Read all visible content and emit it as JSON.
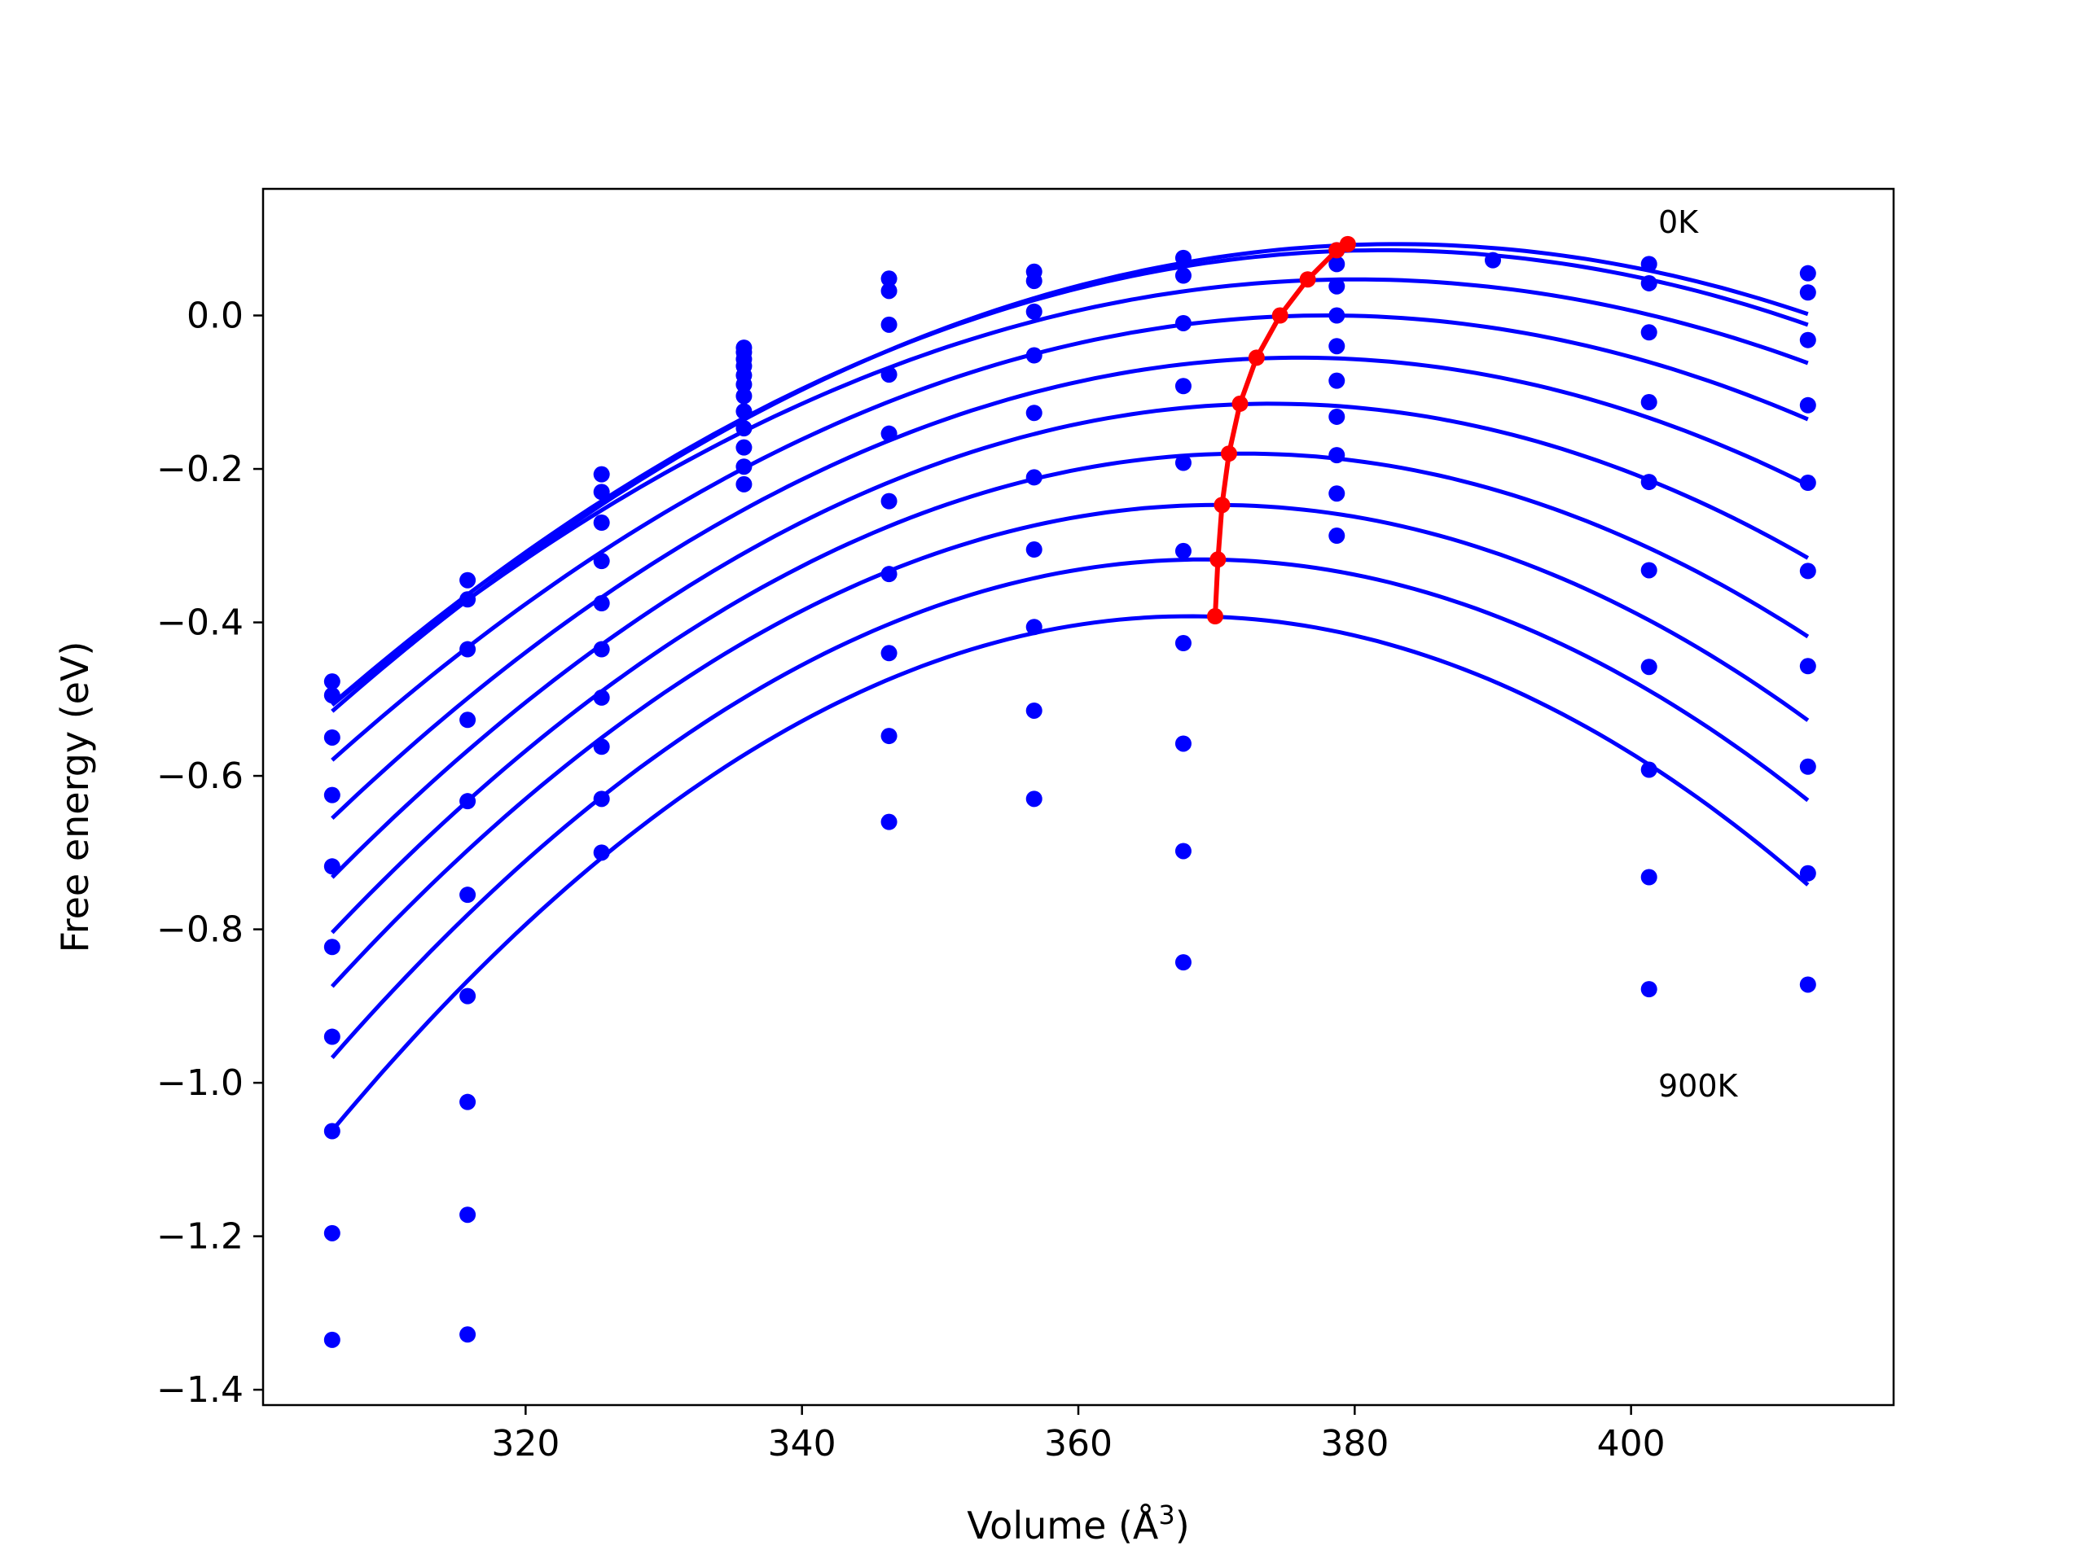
{
  "chart_data": {
    "type": "scatter",
    "xlabel": "Volume (Å³)",
    "ylabel": "Free energy (eV)",
    "xlim": [
      301,
      419
    ],
    "ylim": [
      -1.42,
      0.165
    ],
    "x_ticks": [
      320,
      340,
      360,
      380,
      400
    ],
    "y_ticks": [
      0.0,
      -0.2,
      -0.4,
      -0.6,
      -0.8,
      -1.0,
      -1.2,
      -1.4
    ],
    "x_tick_labels": [
      "320",
      "340",
      "360",
      "380",
      "400"
    ],
    "y_tick_labels": [
      "0.0",
      "−0.2",
      "−0.4",
      "−0.6",
      "−0.8",
      "−1.0",
      "−1.2",
      "−1.4"
    ],
    "grid": false,
    "annotations": [
      {
        "text": "0K",
        "x": 401,
        "y": 0.11
      },
      {
        "text": "900K",
        "x": 401,
        "y": -1.01
      }
    ],
    "colors": {
      "points": "#0000ff",
      "fits": "#0000ff",
      "minimum_path": "#ff0000"
    },
    "points": {
      "x": [
        306,
        315.8,
        325.5,
        335.8,
        346.3,
        356.8,
        367.6,
        378.7,
        390,
        401.3,
        412.8
      ],
      "y_by_x": [
        [
          -0.477,
          -0.495,
          -0.55,
          -0.625,
          -0.718,
          -0.823,
          -0.94,
          -1.063,
          -1.196,
          -1.335
        ],
        [
          -0.345,
          -0.37,
          -0.435,
          -0.527,
          -0.633,
          -0.755,
          -0.887,
          -1.025,
          -1.172,
          -1.328
        ],
        [
          -0.207,
          -0.23,
          -0.27,
          -0.32,
          -0.375,
          -0.435,
          -0.498,
          -0.562,
          -0.63,
          -0.7
        ],
        [
          -0.042,
          -0.048,
          -0.057,
          -0.066,
          -0.078,
          -0.09,
          -0.105,
          -0.125,
          -0.147,
          -0.172,
          -0.197,
          -0.22
        ],
        [
          0.048,
          0.032,
          -0.012,
          -0.077,
          -0.154,
          -0.242,
          -0.337,
          -0.44,
          -0.548,
          -0.66
        ],
        [
          0.057,
          0.045,
          0.005,
          -0.052,
          -0.127,
          -0.211,
          -0.305,
          -0.406,
          -0.515,
          -0.63
        ],
        [
          0.075,
          0.052,
          -0.01,
          -0.092,
          -0.192,
          -0.307,
          -0.427,
          -0.558,
          -0.698,
          -0.843
        ],
        [
          0.085,
          0.067,
          0.038,
          0.0,
          -0.04,
          -0.085,
          -0.132,
          -0.182,
          -0.232,
          -0.287
        ],
        [
          0.072
        ],
        [
          0.067,
          0.042,
          -0.022,
          -0.113,
          -0.217,
          -0.332,
          -0.458,
          -0.592,
          -0.732,
          -0.878
        ],
        [
          0.055,
          0.03,
          -0.032,
          -0.117,
          -0.218,
          -0.333,
          -0.457,
          -0.588,
          -0.727,
          -0.872
        ]
      ]
    },
    "fits": {
      "x_range": [
        306,
        412.8
      ],
      "curves": [
        {
          "temperature": "0K",
          "v0": 383,
          "e0": 0.093,
          "k": 0.0001027
        },
        {
          "v0": 382,
          "e0": 0.085,
          "k": 0.0001024
        },
        {
          "v0": 380,
          "e0": 0.047,
          "k": 0.0001013
        },
        {
          "v0": 378,
          "e0": 0.0,
          "k": 0.0001118
        },
        {
          "v0": 376,
          "e0": -0.055,
          "k": 0.0001225
        },
        {
          "v0": 374,
          "e0": -0.115,
          "k": 0.0001335
        },
        {
          "v0": 372,
          "e0": -0.18,
          "k": 0.0001433
        },
        {
          "v0": 370,
          "e0": -0.247,
          "k": 0.0001532
        },
        {
          "v0": 369,
          "e0": -0.318,
          "k": 0.0001636
        },
        {
          "temperature": "900K",
          "v0": 368,
          "e0": -0.392,
          "k": 0.0001744
        }
      ]
    },
    "minimum_path": {
      "x": [
        379.5,
        378.7,
        376.6,
        374.6,
        372.9,
        371.7,
        370.9,
        370.4,
        370.1,
        369.9
      ],
      "y": [
        0.093,
        0.085,
        0.047,
        0.0,
        -0.055,
        -0.115,
        -0.18,
        -0.247,
        -0.318,
        -0.392
      ]
    }
  }
}
